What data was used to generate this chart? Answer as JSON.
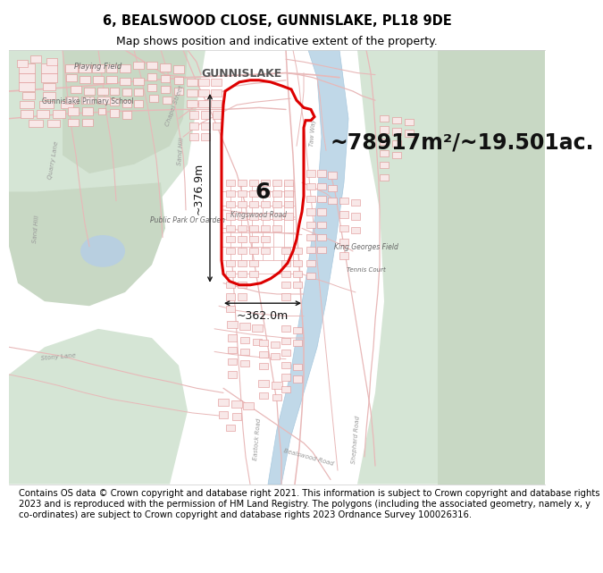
{
  "title_line1": "6, BEALSWOOD CLOSE, GUNNISLAKE, PL18 9DE",
  "title_line2": "Map shows position and indicative extent of the property.",
  "area_text": "~78917m²/~19.501ac.",
  "label_number": "6",
  "dim_vertical": "~376.9m",
  "dim_horizontal": "~362.0m",
  "footer_text": "Contains OS data © Crown copyright and database right 2021. This information is subject to Crown copyright and database rights 2023 and is reproduced with the permission of HM Land Registry. The polygons (including the associated geometry, namely x, y co-ordinates) are subject to Crown copyright and database rights 2023 Ordnance Survey 100026316.",
  "bg_color": "#ffffff",
  "plot_edge_color": "#dd0000",
  "plot_edge_width": 2.2,
  "title_fontsize": 10.5,
  "subtitle_fontsize": 9,
  "area_fontsize": 17,
  "label_fontsize": 18,
  "dim_fontsize": 9,
  "footer_fontsize": 7.2,
  "map_white": "#ffffff",
  "map_green_light": "#dce8dc",
  "map_green_dark": "#c8d8c4",
  "map_green_med": "#d0e0d0",
  "map_road_color": "#e8b8b8",
  "map_building_fill": "#f8e8e8",
  "map_building_edge": "#e09090",
  "map_river_color": "#c8dce8",
  "map_road_outline": "#e8a0a0"
}
